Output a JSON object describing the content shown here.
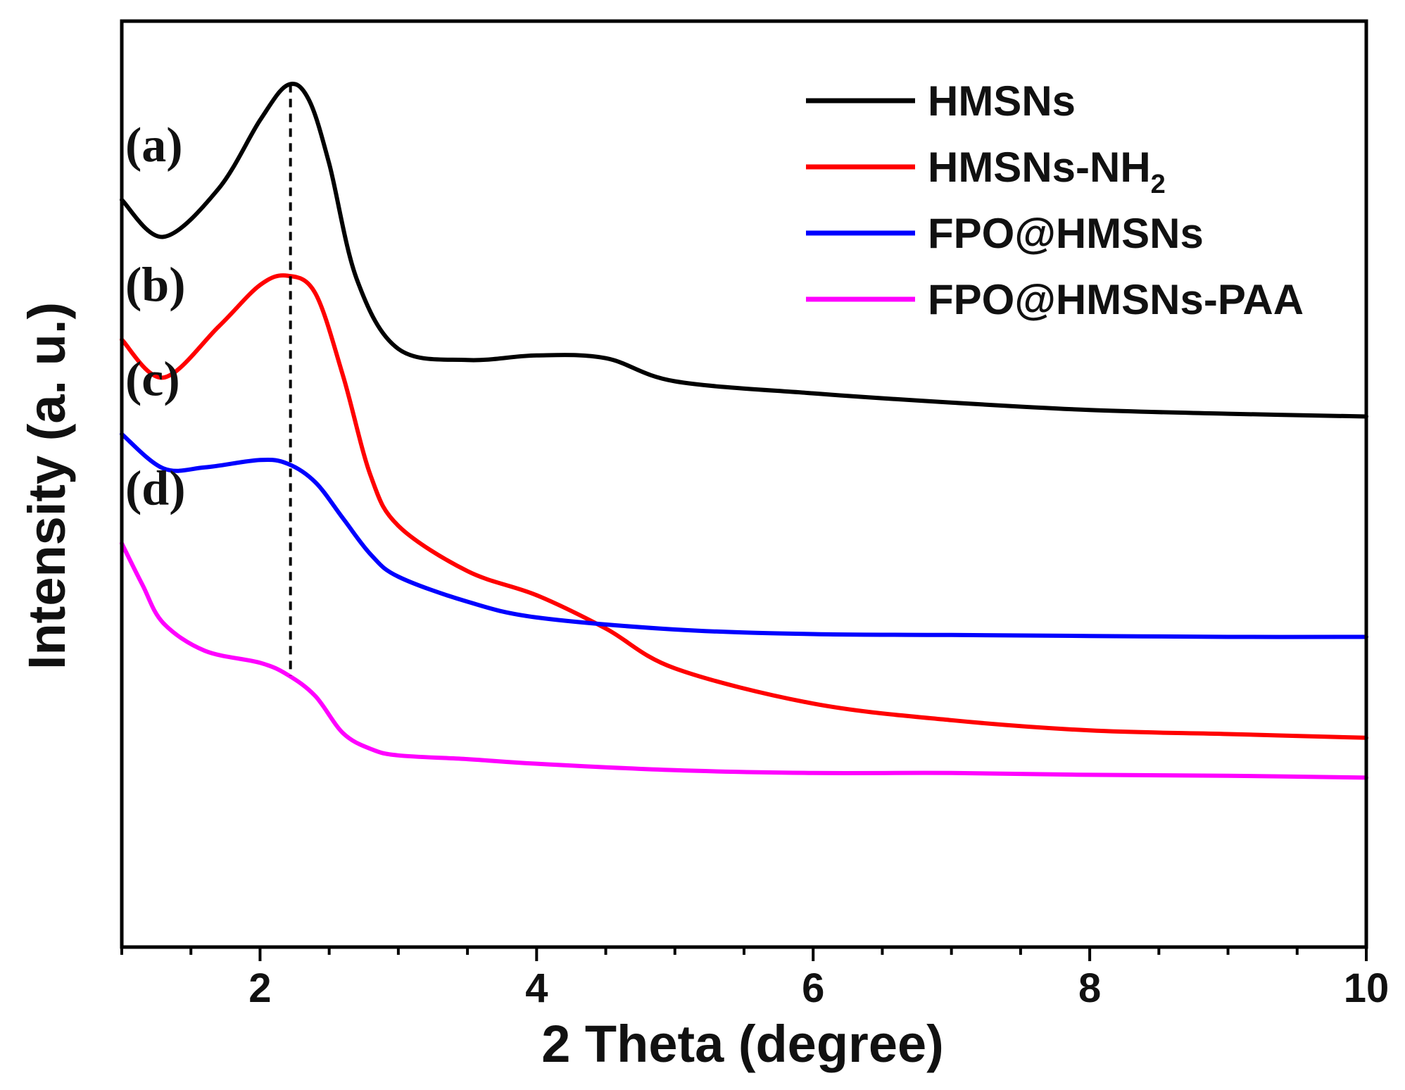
{
  "chart_data": {
    "type": "line",
    "title": "",
    "xlabel": "2 Theta (degree)",
    "ylabel": "Intensity (a. u.)",
    "xlim": [
      1,
      10
    ],
    "ylim": [
      0,
      10
    ],
    "grid": false,
    "legend_position": "top-right",
    "x_ticks": [
      2,
      4,
      6,
      8,
      10
    ],
    "x_tick_labels": [
      "2",
      "4",
      "6",
      "8",
      "10"
    ],
    "y_ticks_shown": false,
    "reference_line": {
      "x": 2.22,
      "style": "dashed",
      "y_from": 2.93,
      "y_to": 9.32
    },
    "series": [
      {
        "name": "HMSNs",
        "legend_text": "HMSNs",
        "legend_sub": "",
        "panel_label": "(a)",
        "color": "#000000",
        "x": [
          1.0,
          1.3,
          1.7,
          2.0,
          2.2,
          2.35,
          2.5,
          2.7,
          3.0,
          3.5,
          4.0,
          4.5,
          5.0,
          6.0,
          7.0,
          8.0,
          9.0,
          10.0
        ],
        "y": [
          8.07,
          7.67,
          8.19,
          8.93,
          9.31,
          9.16,
          8.46,
          7.21,
          6.46,
          6.34,
          6.39,
          6.36,
          6.11,
          5.98,
          5.88,
          5.8,
          5.76,
          5.73
        ]
      },
      {
        "name": "HMSNs-NH2",
        "legend_text": "HMSNs-NH",
        "legend_sub": "2",
        "panel_label": "(b)",
        "color": "#ff0000",
        "x": [
          1.0,
          1.3,
          1.7,
          2.0,
          2.2,
          2.4,
          2.6,
          2.8,
          3.0,
          3.5,
          4.0,
          4.5,
          5.0,
          6.0,
          7.0,
          8.0,
          9.0,
          10.0
        ],
        "y": [
          6.56,
          6.15,
          6.7,
          7.15,
          7.25,
          7.06,
          6.17,
          5.09,
          4.55,
          4.06,
          3.8,
          3.44,
          3.01,
          2.63,
          2.45,
          2.34,
          2.3,
          2.26
        ]
      },
      {
        "name": "FPO@HMSNs",
        "legend_text": "FPO@HMSNs",
        "legend_sub": "",
        "panel_label": "(c)",
        "color": "#0000ff",
        "x": [
          1.0,
          1.3,
          1.6,
          2.0,
          2.2,
          2.4,
          2.6,
          2.8,
          3.0,
          3.5,
          4.0,
          5.0,
          6.0,
          7.0,
          8.0,
          9.0,
          10.0
        ],
        "y": [
          5.54,
          5.17,
          5.18,
          5.26,
          5.22,
          5.02,
          4.63,
          4.24,
          4.0,
          3.73,
          3.56,
          3.43,
          3.38,
          3.37,
          3.36,
          3.35,
          3.35
        ]
      },
      {
        "name": "FPO@HMSNs-PAA",
        "legend_text": "FPO@HMSNs-PAA",
        "legend_sub": "",
        "panel_label": "(d)",
        "color": "#ff00ff",
        "x": [
          1.0,
          1.15,
          1.3,
          1.6,
          2.0,
          2.2,
          2.4,
          2.6,
          2.8,
          3.0,
          3.5,
          4.0,
          5.0,
          6.0,
          7.0,
          8.0,
          9.0,
          10.0
        ],
        "y": [
          4.36,
          3.91,
          3.5,
          3.2,
          3.07,
          2.94,
          2.71,
          2.31,
          2.14,
          2.07,
          2.03,
          1.98,
          1.91,
          1.88,
          1.88,
          1.86,
          1.85,
          1.83
        ]
      }
    ]
  }
}
